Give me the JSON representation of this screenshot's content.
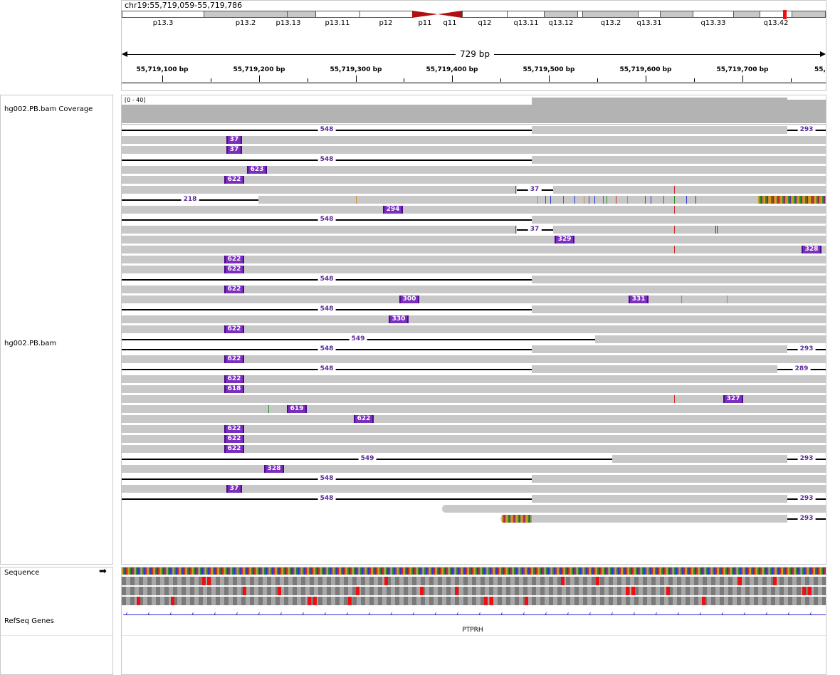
{
  "header": {
    "locus": "chr19:55,719,059-55,719,786",
    "span_label": "729 bp",
    "bands": [
      "p13.3",
      "p13.2",
      "p13.13",
      "p13.11",
      "p12",
      "p11",
      "q11",
      "q12",
      "q13.11",
      "q13.12",
      "q13.2",
      "q13.31",
      "q13.33",
      "q13.42"
    ],
    "ruler_labels": [
      "55,719,100 bp",
      "55,719,200 bp",
      "55,719,300 bp",
      "55,719,400 bp",
      "55,719,500 bp",
      "55,719,600 bp",
      "55,719,700 bp",
      "55,"
    ]
  },
  "tracks": {
    "coverage_name": "hg002.PB.bam Coverage",
    "coverage_range": "[0 - 40]",
    "alignment_name": "hg002.PB.bam",
    "sequence_name": "Sequence",
    "genes_name": "RefSeq Genes",
    "gene_label": "PTPRH"
  },
  "reads": {
    "row1_del": "548",
    "row1_right": "293",
    "row2_ins": "37",
    "row3_ins": "37",
    "row4_del": "548",
    "row5_ins": "623",
    "row6_ins": "622",
    "row7_del": "37",
    "row8_del": "218",
    "row9_ins": "294",
    "row10_del": "548",
    "row11_del": "37",
    "row12_ins": "329",
    "row13_ins": "328",
    "row14_ins": "622",
    "row15_ins": "622",
    "row16_del": "548",
    "row17_ins": "622",
    "row18_ins_a": "300",
    "row18_ins_b": "331",
    "row19_del": "548",
    "row20_ins": "330",
    "row21_ins": "622",
    "row22_del": "549",
    "row23_del": "548",
    "row23_right": "293",
    "row24_ins": "622",
    "row25_del": "548",
    "row25_right": "289",
    "row26_ins": "622",
    "row27_ins": "618",
    "row28_ins": "327",
    "row29_ins": "619",
    "row30_ins": "622",
    "row31_ins": "622",
    "row32_ins": "622",
    "row33_ins": "622",
    "row34_del": "549",
    "row34_right": "293",
    "row35_ins": "328",
    "row36_del": "548",
    "row37_ins": "37",
    "row38_del": "548",
    "row38_right": "293",
    "row40_right": "293"
  },
  "colors": {
    "read": "#c8c8c8",
    "insertion": "#7b2fbf",
    "coverage": "#b3b3b3",
    "deletion_label": "#5a2a9a",
    "centromere": "#b01010",
    "gene": "#2a2ad8",
    "stop_codon": "#ee1010"
  }
}
